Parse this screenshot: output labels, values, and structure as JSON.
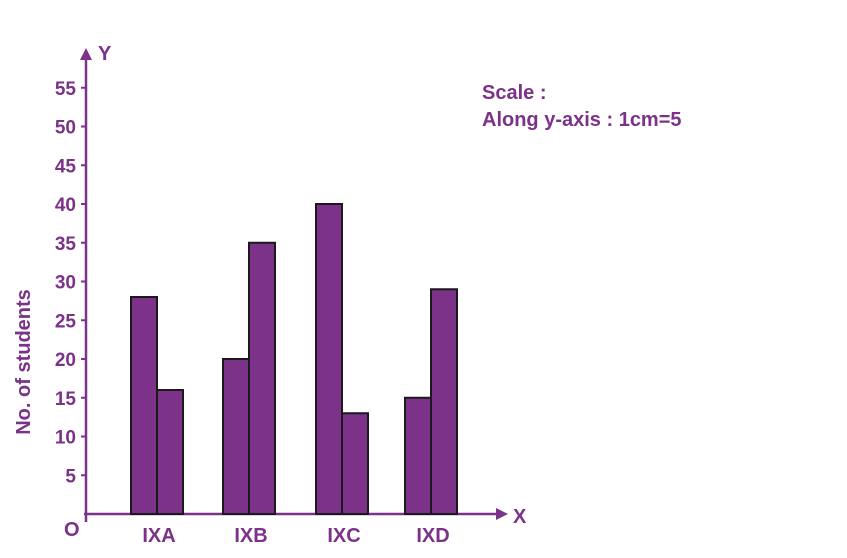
{
  "colors": {
    "accent": "#7b3288",
    "bar_fill": "#7b3288",
    "bar_stroke": "#1a1a1a"
  },
  "annotations": {
    "scale_title": "Scale :",
    "scale_detail": "Along y-axis : 1cm=5"
  },
  "chart_data": {
    "type": "bar",
    "categories": [
      "IXA",
      "IXB",
      "IXC",
      "IXD"
    ],
    "series": [
      {
        "values": [
          28,
          20,
          40,
          15
        ]
      },
      {
        "values": [
          16,
          35,
          13,
          29
        ]
      }
    ],
    "ylabel": "No. of students",
    "x_axis_letter": "X",
    "y_axis_letter": "Y",
    "origin_label": "O",
    "ylim": [
      0,
      55
    ],
    "yticks": [
      5,
      10,
      15,
      20,
      25,
      30,
      35,
      40,
      45,
      50,
      55
    ],
    "grid": false,
    "legend": "none"
  }
}
